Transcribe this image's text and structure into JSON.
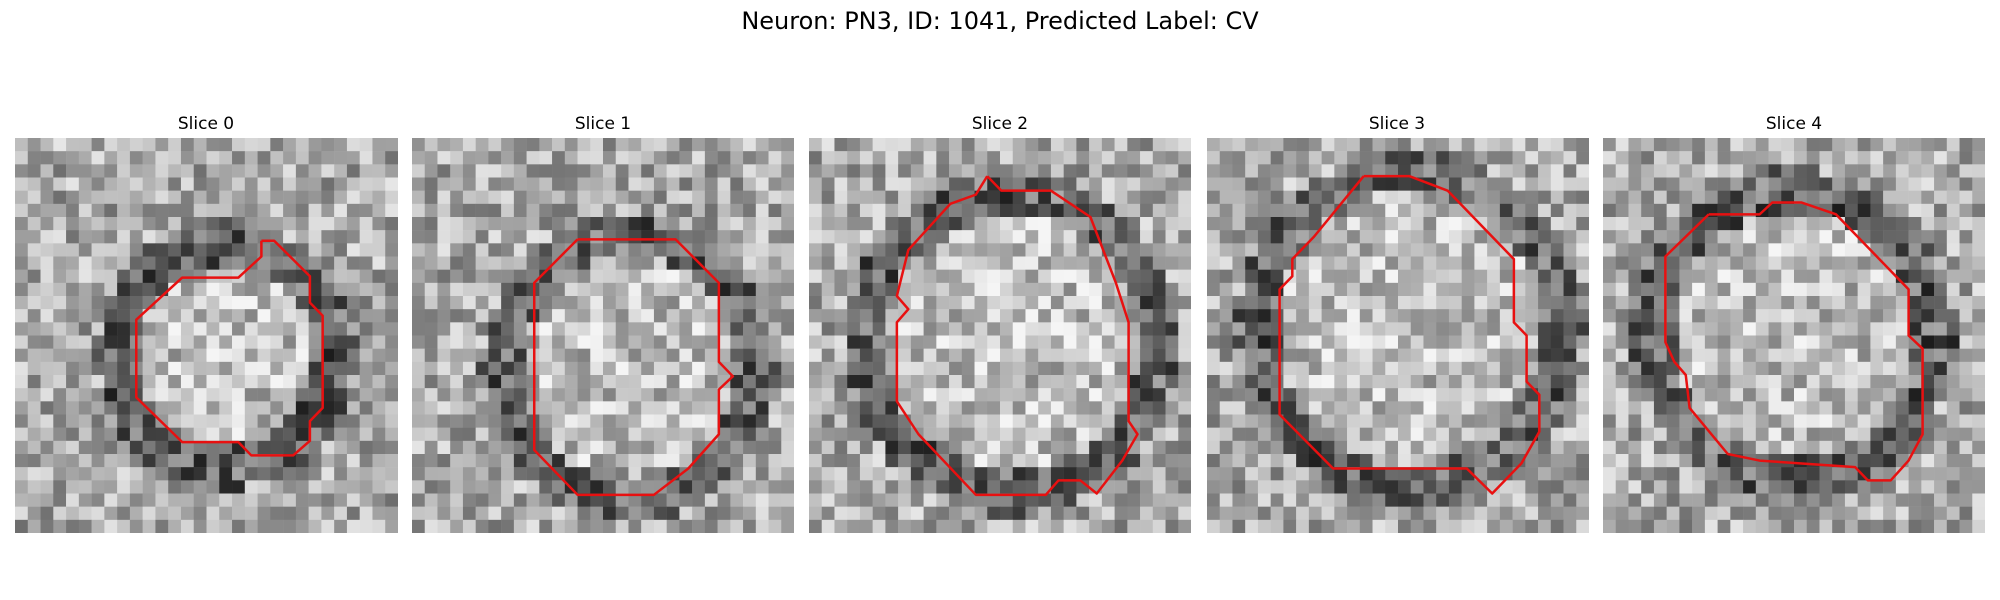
{
  "title": "Neuron: PN3, ID: 1041, Predicted Label: CV",
  "panels": [
    {
      "title": "Slice 0"
    },
    {
      "title": "Slice 1"
    },
    {
      "title": "Slice 2"
    },
    {
      "title": "Slice 3"
    },
    {
      "title": "Slice 4"
    }
  ]
}
